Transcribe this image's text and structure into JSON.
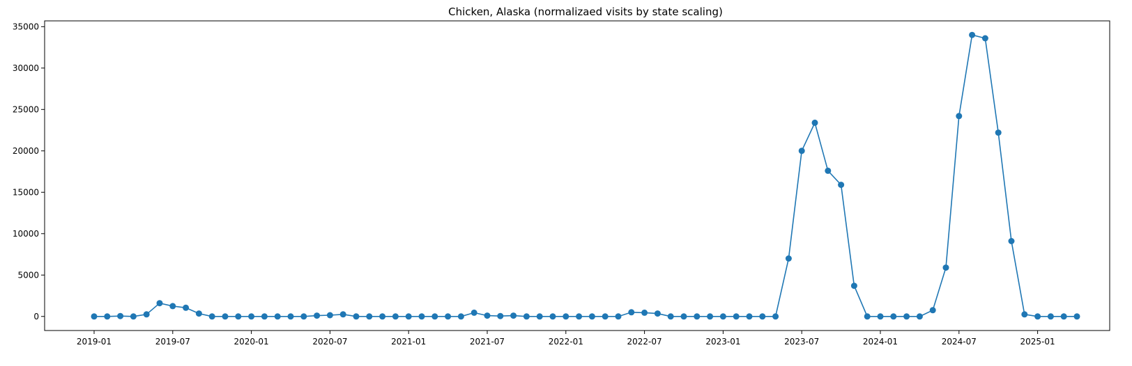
{
  "chart_data": {
    "type": "line",
    "title": "Chicken, Alaska (normalizaed visits by state scaling)",
    "xlabel": "",
    "ylabel": "",
    "x_start": "2019-01",
    "x": [
      "2019-01",
      "2019-02",
      "2019-03",
      "2019-04",
      "2019-05",
      "2019-06",
      "2019-07",
      "2019-08",
      "2019-09",
      "2019-10",
      "2019-11",
      "2019-12",
      "2020-01",
      "2020-02",
      "2020-03",
      "2020-04",
      "2020-05",
      "2020-06",
      "2020-07",
      "2020-08",
      "2020-09",
      "2020-10",
      "2020-11",
      "2020-12",
      "2021-01",
      "2021-02",
      "2021-03",
      "2021-04",
      "2021-05",
      "2021-06",
      "2021-07",
      "2021-08",
      "2021-09",
      "2021-10",
      "2021-11",
      "2021-12",
      "2022-01",
      "2022-02",
      "2022-03",
      "2022-04",
      "2022-05",
      "2022-06",
      "2022-07",
      "2022-08",
      "2022-09",
      "2022-10",
      "2022-11",
      "2022-12",
      "2023-01",
      "2023-02",
      "2023-03",
      "2023-04",
      "2023-05",
      "2023-06",
      "2023-07",
      "2023-08",
      "2023-09",
      "2023-10",
      "2023-11",
      "2023-12",
      "2024-01",
      "2024-02",
      "2024-03",
      "2024-04",
      "2024-05",
      "2024-06",
      "2024-07",
      "2024-08",
      "2024-09",
      "2024-10",
      "2024-11",
      "2024-12",
      "2025-01",
      "2025-02",
      "2025-03",
      "2025-04"
    ],
    "series": [
      {
        "color": "#1f77b4",
        "values": [
          0,
          0,
          50,
          0,
          250,
          1600,
          1250,
          1050,
          350,
          0,
          0,
          0,
          0,
          0,
          0,
          0,
          0,
          100,
          150,
          250,
          0,
          0,
          0,
          0,
          0,
          0,
          0,
          0,
          0,
          450,
          100,
          50,
          100,
          0,
          0,
          0,
          0,
          0,
          0,
          0,
          0,
          500,
          450,
          350,
          0,
          0,
          0,
          0,
          0,
          0,
          0,
          0,
          0,
          7000,
          20000,
          23400,
          17600,
          15900,
          3700,
          0,
          0,
          0,
          0,
          0,
          750,
          5900,
          24200,
          34000,
          33600,
          22200,
          9100,
          250,
          0,
          0,
          0,
          0
        ]
      }
    ],
    "ylim": [
      -1700,
      35700
    ],
    "yticks": [
      0,
      5000,
      10000,
      15000,
      20000,
      25000,
      30000,
      35000
    ],
    "xticks": [
      "2019-01",
      "2019-07",
      "2020-01",
      "2020-07",
      "2021-01",
      "2021-07",
      "2022-01",
      "2022-07",
      "2023-01",
      "2023-07",
      "2024-01",
      "2024-07",
      "2025-01"
    ],
    "grid": false,
    "legend": "none",
    "marker": "circle"
  }
}
